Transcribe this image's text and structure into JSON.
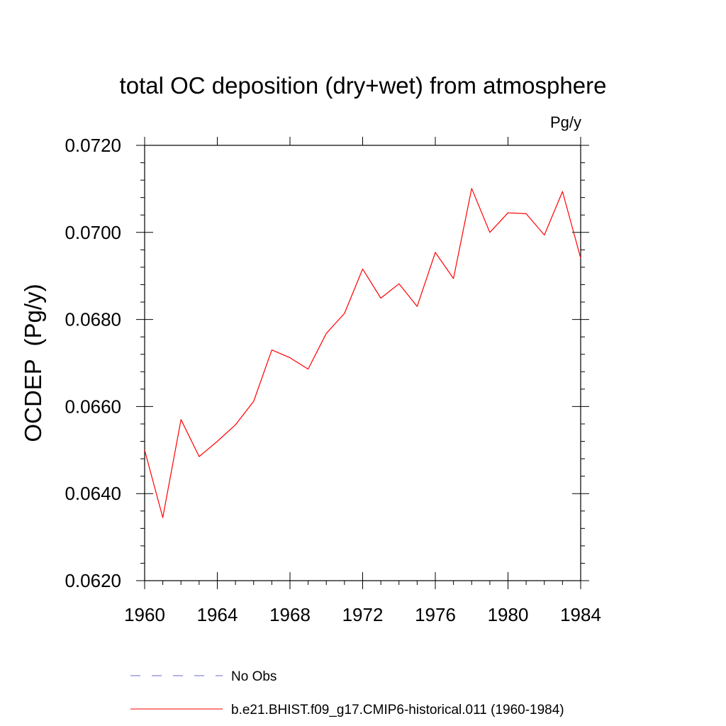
{
  "chart_data": {
    "type": "line",
    "title": "total OC deposition (dry+wet) from atmosphere",
    "units_label": "Pg/y",
    "ylabel": "OCDEP  (Pg/y)",
    "xlabel": "",
    "xlim": [
      1960,
      1984
    ],
    "ylim": [
      0.062,
      0.072
    ],
    "x_ticks": [
      1960,
      1964,
      1968,
      1972,
      1976,
      1980,
      1984
    ],
    "x_tick_labels": [
      "1960",
      "1964",
      "1968",
      "1972",
      "1976",
      "1980",
      "1984"
    ],
    "y_ticks": [
      0.062,
      0.064,
      0.066,
      0.068,
      0.07,
      0.072
    ],
    "y_tick_labels": [
      "0.0620",
      "0.0640",
      "0.0660",
      "0.0680",
      "0.0700",
      "0.0720"
    ],
    "grid": false,
    "legend_position": "bottom",
    "series": [
      {
        "name": "b.e21.BHIST.f09_g17.CMIP6-historical.011 (1960-1984)",
        "color": "#ff0000",
        "style": "solid",
        "x": [
          1960,
          1961,
          1962,
          1963,
          1964,
          1965,
          1966,
          1967,
          1968,
          1969,
          1970,
          1971,
          1972,
          1973,
          1974,
          1975,
          1976,
          1977,
          1978,
          1979,
          1980,
          1981,
          1982,
          1983,
          1984
        ],
        "values": [
          0.065,
          0.06345,
          0.0657,
          0.06485,
          0.0652,
          0.06558,
          0.06612,
          0.0673,
          0.06712,
          0.06686,
          0.06768,
          0.06814,
          0.06916,
          0.06849,
          0.06882,
          0.0683,
          0.06954,
          0.06894,
          0.07101,
          0.07,
          0.07045,
          0.07043,
          0.06994,
          0.07094,
          0.06941
        ]
      }
    ],
    "legend": [
      {
        "label": "No Obs",
        "color": "#6a6ad0",
        "style": "dashed"
      },
      {
        "label": "b.e21.BHIST.f09_g17.CMIP6-historical.011 (1960-1984)",
        "color": "#ff0000",
        "style": "solid"
      }
    ]
  }
}
